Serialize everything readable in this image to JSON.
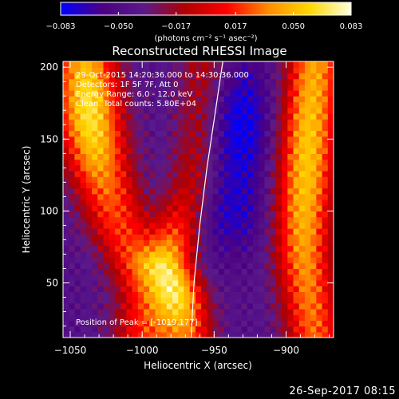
{
  "chart_data": {
    "type": "heatmap",
    "title": "Reconstructed RHESSI Image",
    "xlabel": "Heliocentric X (arcsec)",
    "ylabel": "Heliocentric Y (arcsec)",
    "xlim": [
      -1055,
      -867
    ],
    "ylim": [
      12,
      204
    ],
    "x_ticks": [
      -1050,
      -1000,
      -950,
      -900
    ],
    "x_tick_labels": [
      "−1050",
      "−1000",
      "−950",
      "−900"
    ],
    "y_ticks": [
      50,
      100,
      150,
      200
    ],
    "y_tick_labels": [
      "50",
      "100",
      "150",
      "200"
    ],
    "colorbar": {
      "range": [
        -0.083,
        0.083
      ],
      "ticks": [
        -0.083,
        -0.05,
        -0.017,
        0.017,
        0.05,
        0.083
      ],
      "tick_labels": [
        "−0.083",
        "−0.050",
        "−0.017",
        "0.017",
        "0.050",
        "0.083"
      ],
      "label": "(photons cm⁻² s⁻¹ asec⁻²)",
      "colors": [
        "#0000ff",
        "#4b0082",
        "#5a1a8a",
        "#b00000",
        "#ff0000",
        "#ff8c00",
        "#ffd700",
        "#ffffe0"
      ]
    },
    "annotations": [
      "29-Oct-2015 14:20:36.000 to 14:30:36.000",
      "Detectors: 1F 5F 7F, Att 0",
      "Energy Range: 6.0 - 12.0 keV",
      "Clean. Total counts: 5.80E+04"
    ],
    "peak_label": "Position of Peak = [-1019,177]",
    "peak": {
      "x": -1019,
      "y": 177
    },
    "limb_line": [
      {
        "x": -966,
        "y": 12
      },
      {
        "x": -964,
        "y": 50
      },
      {
        "x": -960,
        "y": 90
      },
      {
        "x": -955,
        "y": 130
      },
      {
        "x": -949,
        "y": 170
      },
      {
        "x": -944,
        "y": 204
      }
    ],
    "grid": false,
    "legend": "none"
  },
  "footer": {
    "timestamp": "26-Sep-2017 08:15"
  }
}
